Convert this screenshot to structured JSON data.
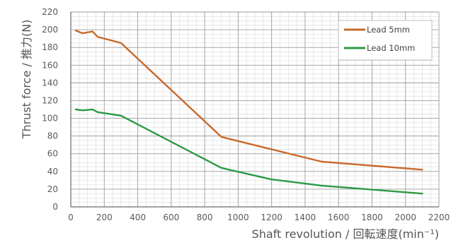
{
  "chart_data": {
    "type": "line",
    "xlabel": "Shaft revolution / 回転速度(min⁻¹)",
    "ylabel": "Thrust force / 推力(N)",
    "xlim": [
      0,
      2200
    ],
    "ylim": [
      0,
      220
    ],
    "x_ticks": [
      "0",
      "200",
      "400",
      "600",
      "800",
      "1000",
      "1200",
      "1400",
      "1600",
      "1800",
      "2000",
      "2200"
    ],
    "y_ticks": [
      "0",
      "20",
      "40",
      "60",
      "80",
      "100",
      "120",
      "140",
      "160",
      "180",
      "200",
      "220"
    ],
    "grid": true,
    "legend_position": "top-right",
    "series": [
      {
        "name": "Lead 5mm",
        "color": "#c8692a",
        "points": [
          [
            30,
            199
          ],
          [
            70,
            196
          ],
          [
            130,
            198
          ],
          [
            160,
            192
          ],
          [
            300,
            185
          ],
          [
            900,
            79
          ],
          [
            1200,
            65
          ],
          [
            1500,
            51
          ],
          [
            2100,
            42
          ]
        ]
      },
      {
        "name": "Lead 10mm",
        "color": "#2c9a46",
        "points": [
          [
            30,
            110
          ],
          [
            70,
            109
          ],
          [
            130,
            110
          ],
          [
            160,
            107
          ],
          [
            300,
            103
          ],
          [
            900,
            44
          ],
          [
            1200,
            31
          ],
          [
            1500,
            24
          ],
          [
            2100,
            15
          ]
        ]
      }
    ]
  }
}
